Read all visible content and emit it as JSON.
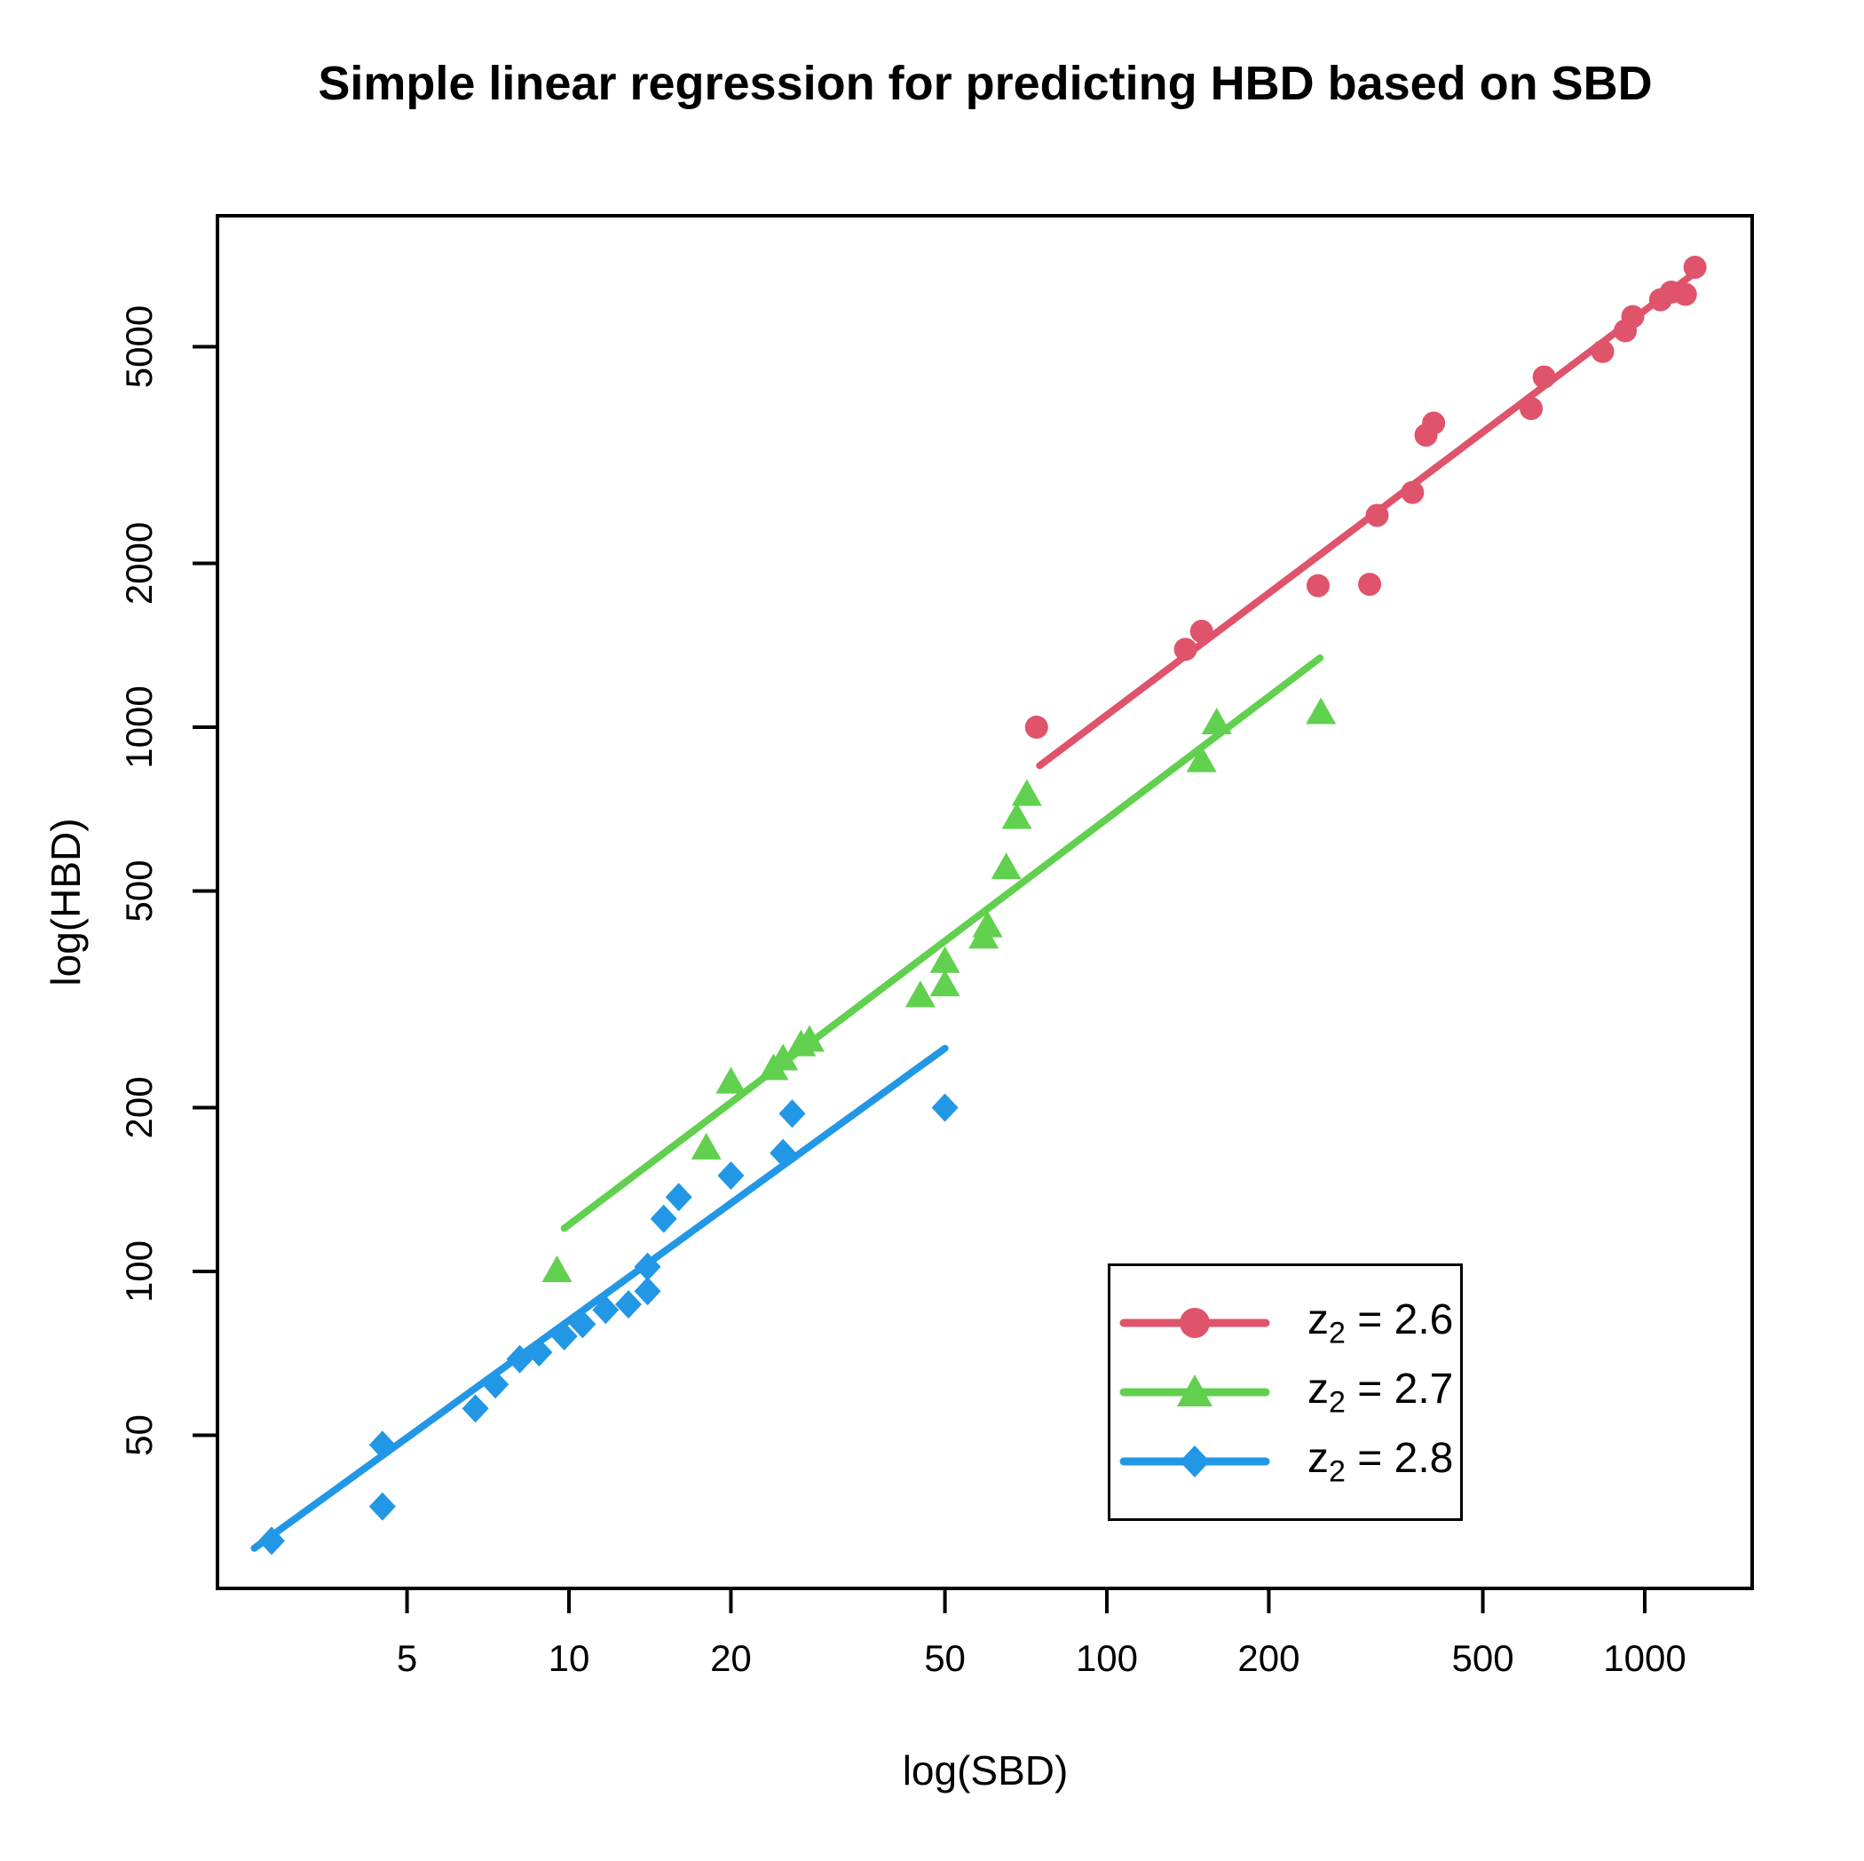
{
  "title": "Simple linear regression for predicting HBD based on SBD",
  "axes": {
    "x": {
      "label": "log(SBD)",
      "ticks": [
        5,
        10,
        20,
        50,
        100,
        200,
        500,
        1000
      ]
    },
    "y": {
      "label": "log(HBD)",
      "ticks": [
        50,
        100,
        200,
        500,
        1000,
        2000,
        5000
      ]
    }
  },
  "legend": {
    "items": [
      {
        "sym": "z",
        "sub": "2",
        "rest": " = 2.6",
        "marker": "circle",
        "color": "#DF536B"
      },
      {
        "sym": "z",
        "sub": "2",
        "rest": " = 2.7",
        "marker": "triangle",
        "color": "#61D04F"
      },
      {
        "sym": "z",
        "sub": "2",
        "rest": " = 2.8",
        "marker": "diamond",
        "color": "#2297E6"
      }
    ]
  },
  "chart_data": {
    "type": "scatter",
    "title": "Simple linear regression for predicting HBD based on SBD",
    "xlabel": "log(SBD)",
    "ylabel": "log(HBD)",
    "x_scale": "log10",
    "y_scale": "log10",
    "x_ticks": [
      5,
      10,
      20,
      50,
      100,
      200,
      500,
      1000
    ],
    "y_ticks": [
      50,
      100,
      200,
      500,
      1000,
      2000,
      5000
    ],
    "x_range": [
      2.2,
      1590
    ],
    "y_range": [
      26,
      8700
    ],
    "grid": false,
    "legend_position": "lower right inset",
    "series": [
      {
        "name": "z2 = 2.6",
        "marker": "circle",
        "color": "#DF536B",
        "points": [
          [
            74,
            1000
          ],
          [
            140,
            1390
          ],
          [
            150,
            1500
          ],
          [
            247,
            1820
          ],
          [
            308,
            1830
          ],
          [
            318,
            2450
          ],
          [
            370,
            2700
          ],
          [
            392,
            3440
          ],
          [
            405,
            3620
          ],
          [
            615,
            3850
          ],
          [
            650,
            4400
          ],
          [
            835,
            4900
          ],
          [
            920,
            5350
          ],
          [
            950,
            5680
          ],
          [
            1070,
            6100
          ],
          [
            1120,
            6300
          ],
          [
            1190,
            6240
          ],
          [
            1240,
            7000
          ]
        ],
        "fit_line": {
          "x1": 75,
          "y1": 850,
          "x2": 1230,
          "y2": 6800
        }
      },
      {
        "name": "z2 = 2.7",
        "marker": "triangle",
        "color": "#61D04F",
        "points": [
          [
            9.5,
            100
          ],
          [
            18,
            168
          ],
          [
            20,
            222
          ],
          [
            24,
            235
          ],
          [
            25,
            245
          ],
          [
            27,
            260
          ],
          [
            28,
            265
          ],
          [
            45,
            320
          ],
          [
            50,
            335
          ],
          [
            50,
            370
          ],
          [
            59,
            410
          ],
          [
            60,
            430
          ],
          [
            65,
            550
          ],
          [
            68,
            680
          ],
          [
            71,
            750
          ],
          [
            150,
            865
          ],
          [
            160,
            1015
          ],
          [
            250,
            1060
          ]
        ],
        "fit_line": {
          "x1": 9.8,
          "y1": 120,
          "x2": 249,
          "y2": 1340
        }
      },
      {
        "name": "z2 = 2.8",
        "marker": "diamond",
        "color": "#2297E6",
        "points": [
          [
            2.8,
            32
          ],
          [
            4.5,
            37
          ],
          [
            4.5,
            48
          ],
          [
            6.7,
            56
          ],
          [
            7.3,
            62
          ],
          [
            8.1,
            69
          ],
          [
            8.8,
            71
          ],
          [
            9.8,
            76
          ],
          [
            10.6,
            80
          ],
          [
            11.7,
            85
          ],
          [
            12.9,
            87
          ],
          [
            14,
            92
          ],
          [
            14,
            102
          ],
          [
            15,
            125
          ],
          [
            16,
            137
          ],
          [
            20,
            150
          ],
          [
            25,
            165
          ],
          [
            26,
            195
          ],
          [
            50,
            200
          ]
        ],
        "fit_line": {
          "x1": 2.6,
          "y1": 31,
          "x2": 50,
          "y2": 257
        }
      }
    ]
  }
}
